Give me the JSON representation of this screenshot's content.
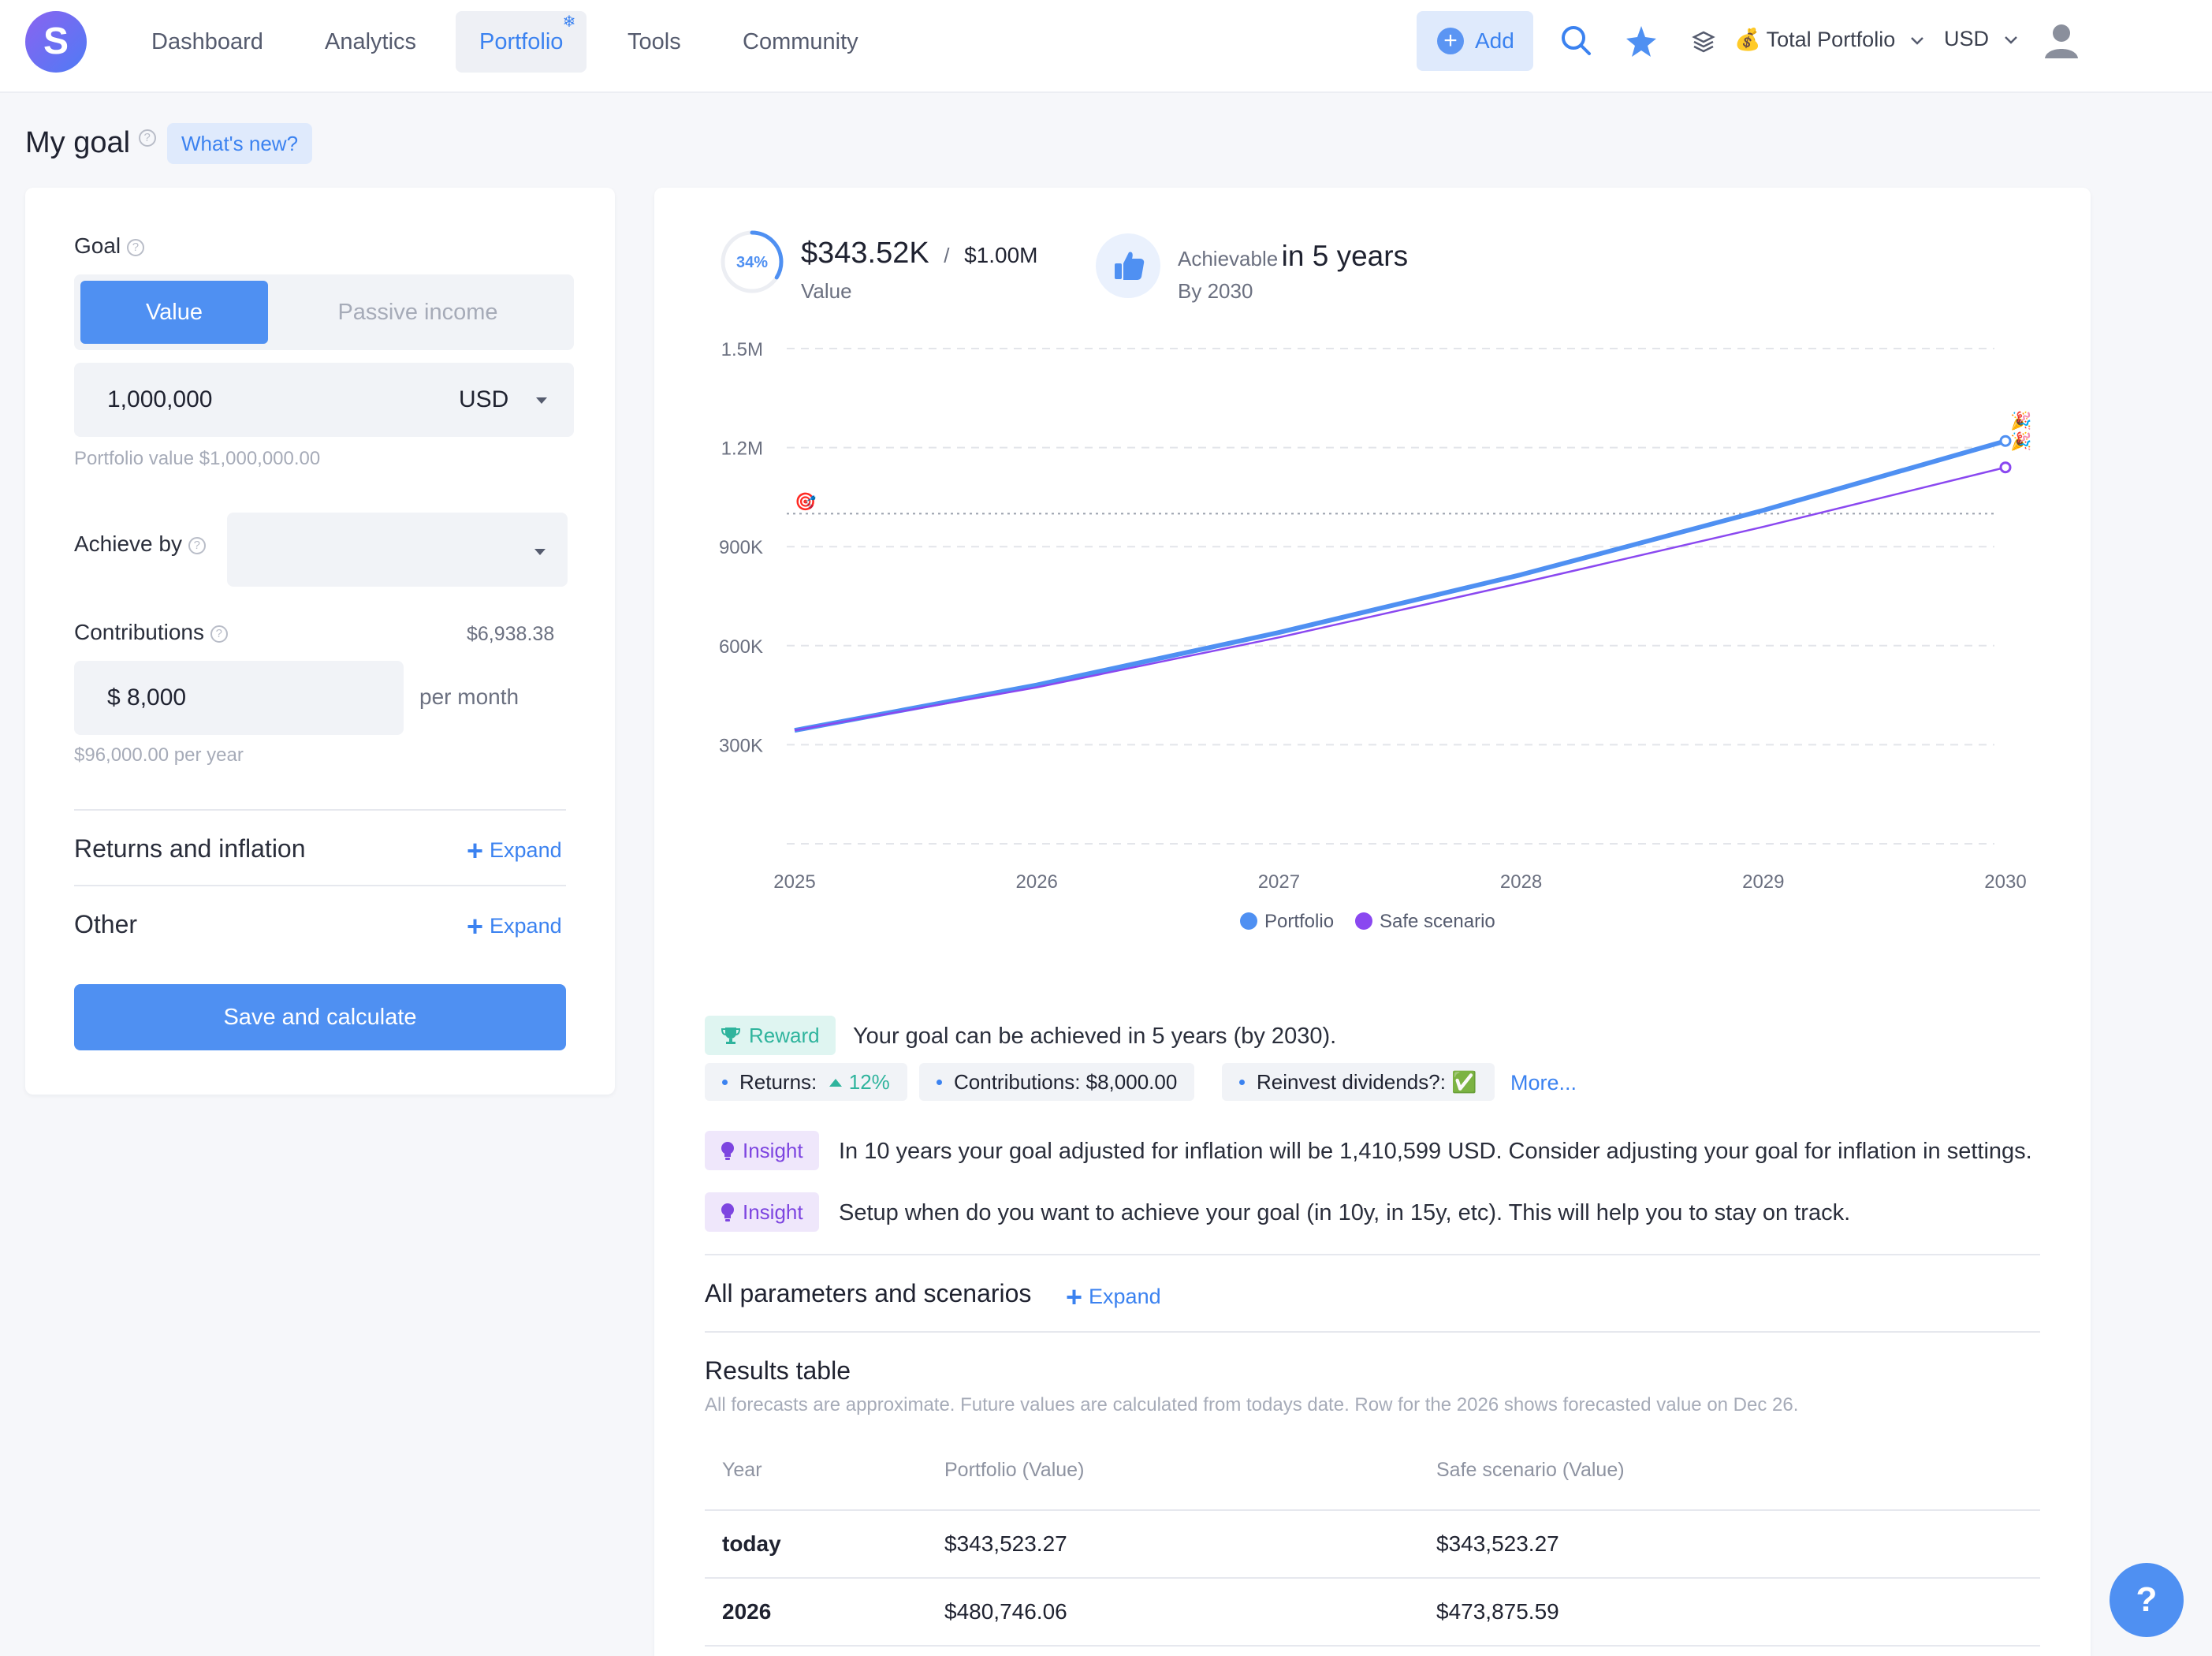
{
  "nav": {
    "logo_letter": "S",
    "items": [
      "Dashboard",
      "Analytics",
      "Portfolio",
      "Tools",
      "Community"
    ],
    "active": "Portfolio",
    "add_label": "Add",
    "portfolio_selector": "💰 Total Portfolio",
    "currency": "USD"
  },
  "page": {
    "title": "My goal",
    "whats_new": "What's new?"
  },
  "form": {
    "goal_label": "Goal",
    "seg_value": "Value",
    "seg_passive": "Passive income",
    "goal_amount": "1,000,000",
    "goal_currency": "USD",
    "portfolio_value_hint": "Portfolio value $1,000,000.00",
    "achieve_by_label": "Achieve by",
    "achieve_by_value": "",
    "contributions_label": "Contributions",
    "contributions_side_value": "$6,938.38",
    "contribution_amount": "$ 8,000",
    "per_month": "per month",
    "per_year_hint": "$96,000.00 per year",
    "returns_label": "Returns and inflation",
    "other_label": "Other",
    "expand_label": "Expand",
    "save_label": "Save and calculate"
  },
  "summary": {
    "progress_percent": 34,
    "progress_label": "34%",
    "current_value": "$343.52K",
    "separator": "/",
    "goal_value": "$1.00M",
    "value_caption": "Value",
    "achievable_prefix": "Achievable",
    "achievable_years": "in 5 years",
    "by_year": "By 2030"
  },
  "chart_data": {
    "type": "line",
    "x": [
      2025,
      2026,
      2027,
      2028,
      2029,
      2030
    ],
    "yticks": [
      "1.5M",
      "1.2M",
      "900K",
      "600K",
      "300K"
    ],
    "ylim": [
      0,
      1500000
    ],
    "goal_line": 1000000,
    "series": [
      {
        "name": "Portfolio",
        "color": "#4f90f2",
        "values": [
          343523,
          480746,
          640000,
          815000,
          1010000,
          1220000
        ]
      },
      {
        "name": "Safe scenario",
        "color": "#8a48f0",
        "values": [
          343523,
          473876,
          625000,
          790000,
          960000,
          1140000
        ]
      }
    ],
    "legend_position": "bottom-center",
    "grid": true
  },
  "insights": {
    "reward_tag": "Reward",
    "reward_text": "Your goal can be achieved in 5 years (by 2030).",
    "returns_label": "Returns:",
    "returns_value": "12%",
    "contributions_pill": "Contributions: $8,000.00",
    "reinvest_pill": "Reinvest dividends?: ✅",
    "more_link": "More...",
    "insight_tag": "Insight",
    "insight_1": "In 10 years your goal adjusted for inflation will be 1,410,599 USD. Consider adjusting your goal for inflation in settings.",
    "insight_2": "Setup when do you want to achieve your goal (in 10y, in 15y, etc). This will help you to stay on track."
  },
  "params": {
    "title": "All parameters and scenarios",
    "expand": "Expand"
  },
  "results": {
    "title": "Results table",
    "note": "All forecasts are approximate. Future values are calculated from todays date. Row for the 2026 shows forecasted value on Dec 26.",
    "columns": [
      "Year",
      "Portfolio (Value)",
      "Safe scenario (Value)"
    ],
    "rows": [
      [
        "today",
        "$343,523.27",
        "$343,523.27"
      ],
      [
        "2026",
        "$480,746.06",
        "$473,875.59"
      ]
    ]
  },
  "help": "?"
}
